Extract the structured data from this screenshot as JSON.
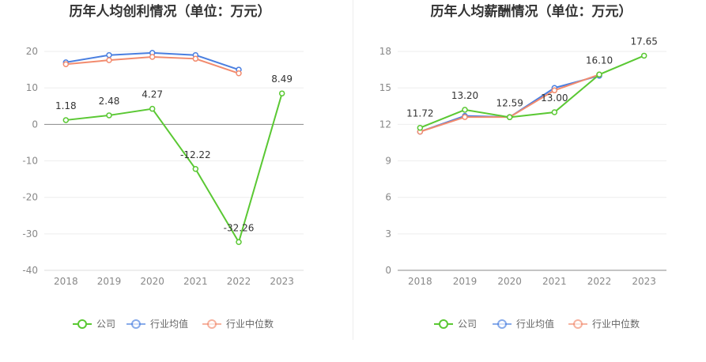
{
  "chart_data": [
    {
      "type": "line",
      "title": "历年人均创利情况（单位：万元）",
      "categories": [
        "2018",
        "2019",
        "2020",
        "2021",
        "2022",
        "2023"
      ],
      "ylim": [
        -40,
        25
      ],
      "yticks": [
        20,
        10,
        0,
        -10,
        -20,
        -30,
        -40
      ],
      "grid": true,
      "legend_position": "bottom-center",
      "series": [
        {
          "name": "公司",
          "color": "#5ac833",
          "values": [
            1.18,
            2.48,
            4.27,
            -12.22,
            -32.26,
            8.49
          ],
          "labels": [
            "1.18",
            "2.48",
            "4.27",
            "-12.22",
            "-32.26",
            "8.49"
          ]
        },
        {
          "name": "行业均值",
          "color": "#4a7fe0",
          "values": [
            17.0,
            19.0,
            19.6,
            19.0,
            15.0,
            null
          ]
        },
        {
          "name": "行业中位数",
          "color": "#f28b6e",
          "values": [
            16.5,
            17.6,
            18.5,
            18.0,
            14.0,
            null
          ]
        }
      ]
    },
    {
      "type": "line",
      "title": "历年人均薪酬情况（单位：万元）",
      "categories": [
        "2018",
        "2019",
        "2020",
        "2021",
        "2022",
        "2023"
      ],
      "ylim": [
        0,
        19.5
      ],
      "yticks": [
        18,
        15,
        12,
        9,
        6,
        3,
        0
      ],
      "grid": true,
      "legend_position": "bottom-center",
      "series": [
        {
          "name": "公司",
          "color": "#5ac833",
          "values": [
            11.72,
            13.2,
            12.59,
            13.0,
            16.1,
            17.65
          ],
          "labels": [
            "11.72",
            "13.20",
            "12.59",
            "13.00",
            "16.10",
            "17.65"
          ]
        },
        {
          "name": "行业均值",
          "color": "#4a7fe0",
          "values": [
            11.4,
            12.7,
            12.6,
            15.0,
            16.0,
            null
          ]
        },
        {
          "name": "行业中位数",
          "color": "#f28b6e",
          "values": [
            11.4,
            12.6,
            12.6,
            14.8,
            16.1,
            null
          ]
        }
      ]
    }
  ]
}
